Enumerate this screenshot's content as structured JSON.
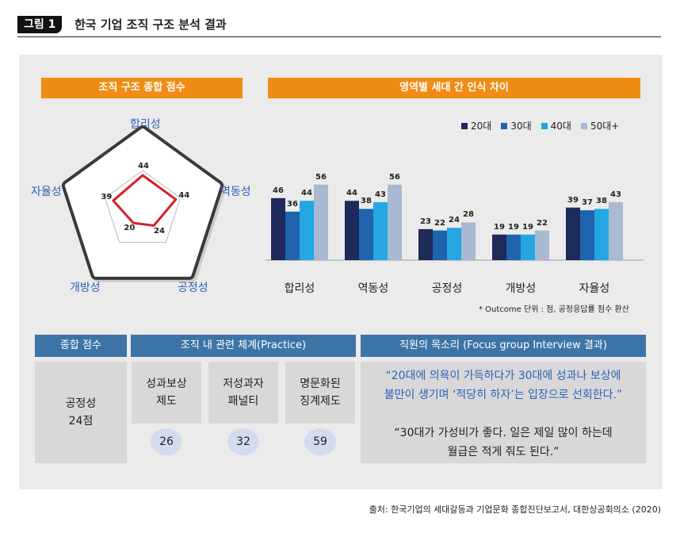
{
  "figure": {
    "badge": "그림 1",
    "title": "한국 기업 조직 구조 분석 결과"
  },
  "radar_panel": {
    "header": "조직 구조 종합 점수"
  },
  "bar_panel": {
    "header": "영역별 세대 간 인식 차이",
    "note": "* Outcome 단위 : 점, 공정응답률 점수 환산"
  },
  "summary": {
    "total_header": "종합 점수",
    "total_label": "공정성",
    "total_value": "24점",
    "practice_header": "조직 내 관련 체계(Practice)",
    "practices": [
      {
        "label": "성과보상\n제도",
        "value": "26"
      },
      {
        "label": "저성과자\n패널티",
        "value": "32"
      },
      {
        "label": "명문화된\n징계제도",
        "value": "59"
      }
    ],
    "voice_header": "직원의 목소리 (Focus group Interview 결과)",
    "quote1_line1": "“20대에 의욕이 가득하다가 30대에 성과나 보상에",
    "quote1_line2": "불만이 생기며 ‘적당히 하자’는 입장으로 선회한다.”",
    "quote2_line1": "“30대가 가성비가 좋다. 일은 제일 많이 하는데",
    "quote2_line2": "월급은 적게 줘도 된다.”"
  },
  "source": "출처: 한국기업의 세대갈등과 기업문화 종합진단보고서, 대한상공회의소 (2020)",
  "colors": {
    "orange": "#f08c14",
    "blue_header": "#3d74a7",
    "radar_line": "#d62027"
  },
  "chart_data": [
    {
      "type": "radar",
      "title": "조직 구조 종합 점수",
      "axes": [
        "합리성",
        "역동성",
        "공정성",
        "개방성",
        "자율성"
      ],
      "values": [
        44,
        44,
        24,
        20,
        39
      ],
      "max": 100
    },
    {
      "type": "bar",
      "title": "영역별 세대 간 인식 차이",
      "categories": [
        "합리성",
        "역동성",
        "공정성",
        "개방성",
        "자율성"
      ],
      "series": [
        {
          "name": "20대",
          "color": "#1d2a5a",
          "values": [
            46,
            44,
            23,
            19,
            39
          ]
        },
        {
          "name": "30대",
          "color": "#1f63ad",
          "values": [
            36,
            38,
            22,
            19,
            37
          ]
        },
        {
          "name": "40대",
          "color": "#25a6e2",
          "values": [
            44,
            43,
            24,
            19,
            38
          ]
        },
        {
          "name": "50대+",
          "color": "#a9b9d2",
          "values": [
            56,
            56,
            28,
            22,
            43
          ]
        }
      ],
      "ylim": [
        0,
        60
      ]
    }
  ]
}
